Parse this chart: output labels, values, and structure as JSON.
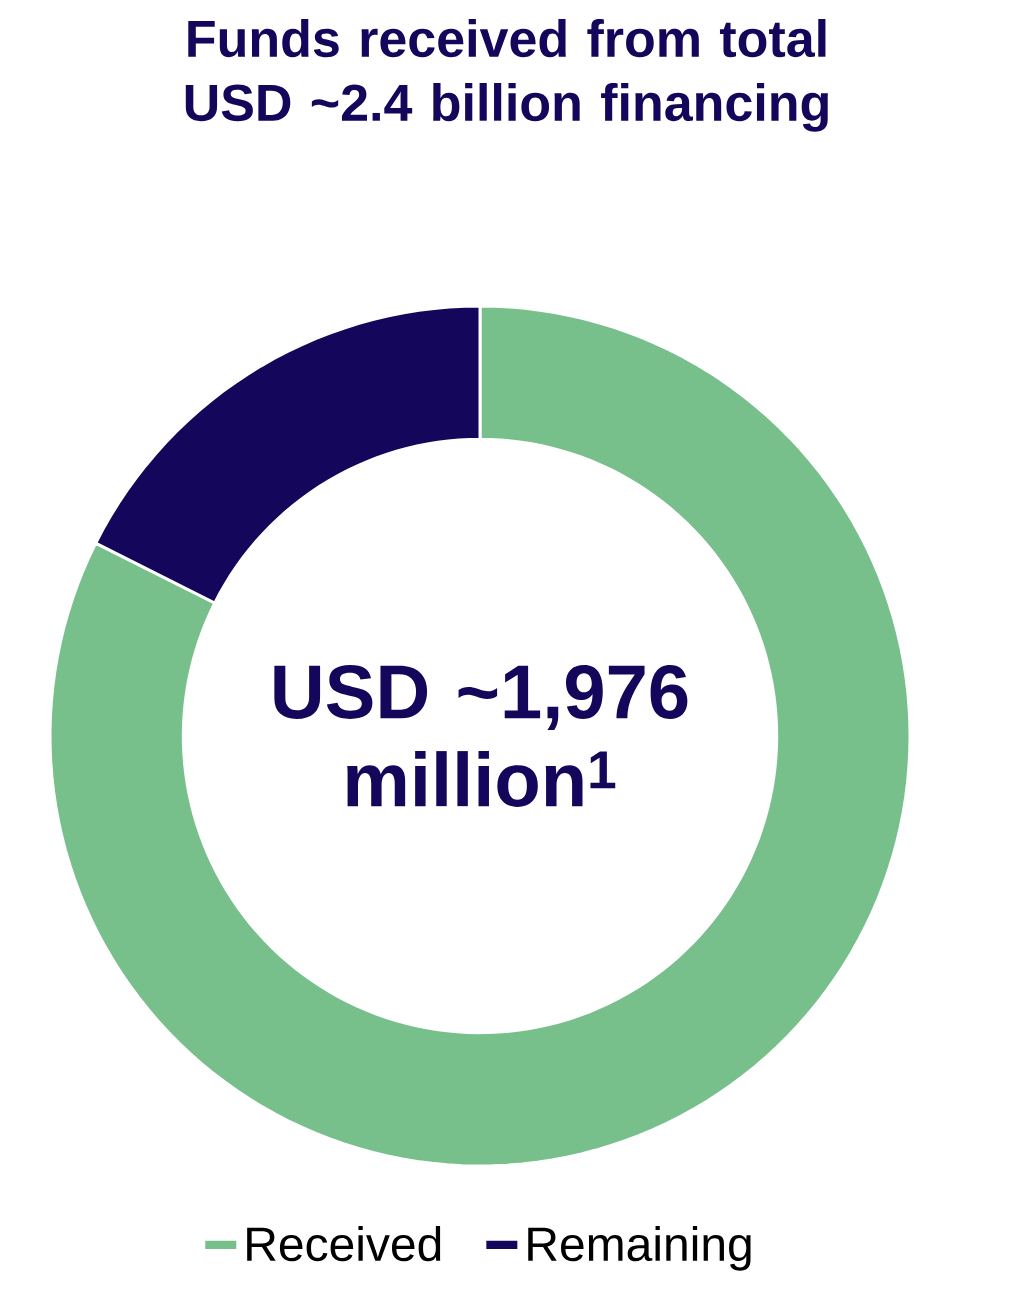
{
  "chart_data": {
    "type": "donut",
    "title": "Funds received from total USD ~2.4 billion financing",
    "categories": [
      "Received",
      "Remaining"
    ],
    "values": [
      82.4,
      17.6
    ],
    "colors": [
      "#77c08b",
      "#14065a"
    ],
    "annotations": [
      "USD ~1,976 million$^{1}$"
    ],
    "legend": "bottom"
  }
}
